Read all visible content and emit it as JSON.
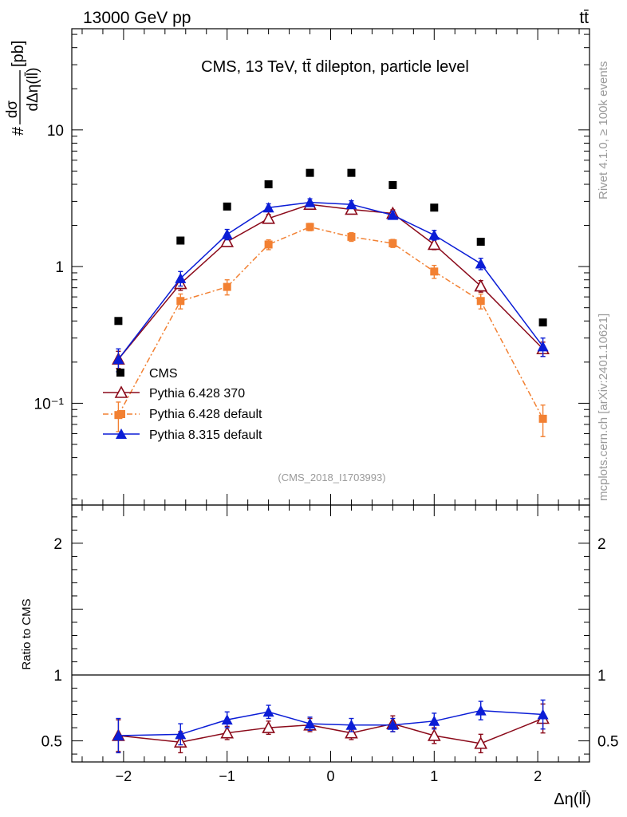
{
  "header": {
    "left": "13000 GeV pp",
    "right": "tt̄"
  },
  "side_labels": {
    "rivet": "Rivet 4.1.0, ≥ 100k events",
    "mcplots": "mcplots.cern.ch [arXiv:2401.10621]"
  },
  "chart_data": [
    {
      "panel": "main",
      "type": "scatter",
      "title": "CMS, 13 TeV, tt̄ dilepton, particle level",
      "watermark": "(CMS_2018_I1703993)",
      "ylabel": "# dσ/dΔη(ll̄) [pb]",
      "ylabel_parts": {
        "prefix": "#",
        "num": "dσ",
        "den": "dΔη(ll̄)",
        "unit": "[pb]"
      },
      "yscale": "log",
      "xlim": [
        -2.5,
        2.5
      ],
      "ylim": [
        0.018,
        55
      ],
      "yticks": [
        {
          "v": 0.1,
          "label": "10⁻¹"
        },
        {
          "v": 1,
          "label": "1"
        },
        {
          "v": 10,
          "label": "10"
        }
      ],
      "x": [
        -2.05,
        -1.45,
        -1.0,
        -0.6,
        -0.2,
        0.2,
        0.6,
        1.0,
        1.45,
        2.05
      ],
      "series": [
        {
          "name": "CMS",
          "style": "marker-square",
          "color": "#000000",
          "values": [
            0.4,
            1.55,
            2.75,
            4.0,
            4.85,
            4.85,
            3.95,
            2.7,
            1.52,
            0.39
          ]
        },
        {
          "name": "Pythia 6.428 370",
          "style": "line-open-triangle",
          "color": "#8b0a1a",
          "values": [
            0.21,
            0.75,
            1.52,
            2.25,
            2.85,
            2.62,
            2.45,
            1.45,
            0.72,
            0.25
          ],
          "errors": [
            0.03,
            0.08,
            0.1,
            0.15,
            0.15,
            0.15,
            0.15,
            0.12,
            0.07,
            0.03
          ]
        },
        {
          "name": "Pythia 6.428 default",
          "style": "dashdot-filled-square",
          "color": "#f28032",
          "values": [
            0.082,
            0.56,
            0.71,
            1.45,
            1.95,
            1.65,
            1.48,
            0.92,
            0.56,
            0.077
          ],
          "errors": [
            0.02,
            0.07,
            0.09,
            0.12,
            0.12,
            0.12,
            0.1,
            0.1,
            0.07,
            0.02
          ]
        },
        {
          "name": "Pythia 8.315 default",
          "style": "line-filled-triangle",
          "color": "#0b1dd6",
          "values": [
            0.21,
            0.82,
            1.72,
            2.7,
            2.95,
            2.85,
            2.38,
            1.7,
            1.05,
            0.26
          ],
          "errors": [
            0.04,
            0.1,
            0.15,
            0.18,
            0.18,
            0.18,
            0.15,
            0.14,
            0.1,
            0.04
          ]
        }
      ]
    },
    {
      "panel": "ratio",
      "type": "line",
      "ylabel": "Ratio to CMS",
      "ylim": [
        0.34,
        2.29
      ],
      "yticks": [
        {
          "v": 0.5,
          "label": "0.5"
        },
        {
          "v": 1,
          "label": "1"
        },
        {
          "v": 2,
          "label": "2"
        }
      ],
      "xlabel": "Δη(ll̄)",
      "xticks": [
        {
          "v": -2,
          "label": "−2"
        },
        {
          "v": -1,
          "label": "−1"
        },
        {
          "v": 0,
          "label": "0"
        },
        {
          "v": 1,
          "label": "1"
        },
        {
          "v": 2,
          "label": "2"
        }
      ],
      "x": [
        -2.05,
        -1.45,
        -1.0,
        -0.6,
        -0.2,
        0.2,
        0.6,
        1.0,
        1.45,
        2.05
      ],
      "reference": 1.0,
      "series": [
        {
          "name": "Pythia 6.428 370",
          "color": "#8b0a1a",
          "values": [
            0.54,
            0.49,
            0.56,
            0.6,
            0.62,
            0.56,
            0.63,
            0.54,
            0.48,
            0.67
          ],
          "errors": [
            0.12,
            0.08,
            0.05,
            0.05,
            0.05,
            0.05,
            0.06,
            0.06,
            0.07,
            0.11
          ]
        },
        {
          "name": "Pythia 8.315 default",
          "color": "#0b1dd6",
          "values": [
            0.54,
            0.55,
            0.66,
            0.72,
            0.63,
            0.62,
            0.62,
            0.65,
            0.73,
            0.7
          ],
          "errors": [
            0.13,
            0.08,
            0.06,
            0.05,
            0.05,
            0.05,
            0.05,
            0.06,
            0.07,
            0.11
          ]
        }
      ]
    }
  ]
}
